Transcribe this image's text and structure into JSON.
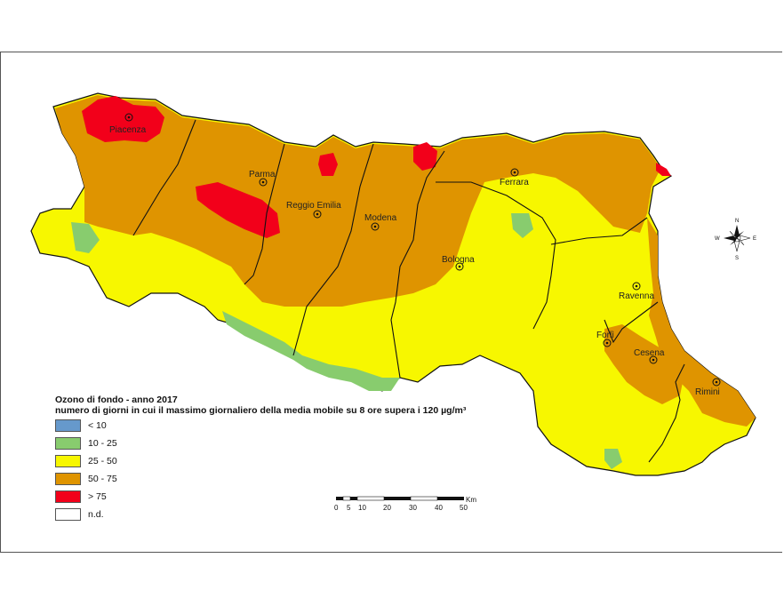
{
  "legend": {
    "title": "Ozono di fondo - anno 2017",
    "subtitle": "numero di giorni in cui il massimo giornaliero della media mobile su 8 ore supera i 120 µg/m³",
    "classes": [
      {
        "label": "< 10",
        "color": "#6699cc"
      },
      {
        "label": "10 - 25",
        "color": "#88cc6e"
      },
      {
        "label": "25 - 50",
        "color": "#f7f700"
      },
      {
        "label": "50 - 75",
        "color": "#df9400"
      },
      {
        "label": "> 75",
        "color": "#f2001a"
      },
      {
        "label": "n.d.",
        "color": "#ffffff"
      }
    ]
  },
  "cities": [
    {
      "name": "Piacenza"
    },
    {
      "name": "Parma"
    },
    {
      "name": "Reggio Emilia"
    },
    {
      "name": "Modena"
    },
    {
      "name": "Ferrara"
    },
    {
      "name": "Bologna"
    },
    {
      "name": "Ravenna"
    },
    {
      "name": "Forlì"
    },
    {
      "name": "Cesena"
    },
    {
      "name": "Rimini"
    }
  ],
  "scale_bar": {
    "unit": "Km",
    "ticks": [
      "0",
      "5",
      "10",
      "20",
      "30",
      "40",
      "50"
    ]
  },
  "compass": {
    "north": "N",
    "south": "S",
    "east": "E",
    "west": "W"
  },
  "colors": {
    "background": "#ffffff",
    "boundary": "#111111"
  }
}
